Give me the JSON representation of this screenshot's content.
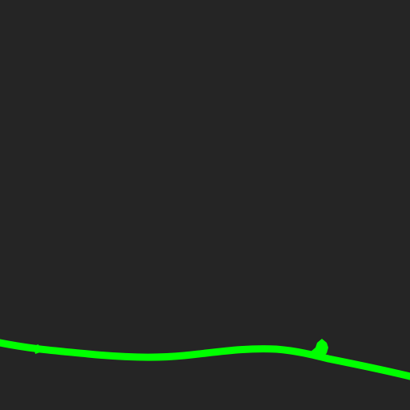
{
  "scene": {
    "background_color": "#252525",
    "terrain_color": "#00ff00",
    "player_color": "#00ff00",
    "terrain_name": "terrain-line",
    "player_name": "player-rider-icon"
  }
}
